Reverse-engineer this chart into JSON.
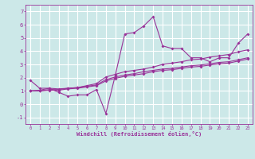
{
  "xlabel": "Windchill (Refroidissement éolien,°C)",
  "background_color": "#cce8e8",
  "grid_color": "#ffffff",
  "line_color": "#993399",
  "x_values": [
    0,
    1,
    2,
    3,
    4,
    5,
    6,
    7,
    8,
    9,
    10,
    11,
    12,
    13,
    14,
    15,
    16,
    17,
    18,
    19,
    20,
    21,
    22,
    23
  ],
  "line1_y": [
    1.8,
    1.2,
    1.2,
    0.9,
    0.6,
    0.7,
    0.7,
    1.1,
    -0.7,
    2.2,
    5.3,
    5.4,
    5.9,
    6.6,
    4.4,
    4.2,
    4.2,
    3.5,
    3.5,
    3.2,
    3.5,
    3.5,
    4.6,
    5.3
  ],
  "line2_y": [
    1.0,
    1.05,
    1.2,
    1.15,
    1.2,
    1.25,
    1.4,
    1.55,
    2.05,
    2.25,
    2.45,
    2.55,
    2.65,
    2.8,
    3.0,
    3.1,
    3.2,
    3.35,
    3.4,
    3.55,
    3.65,
    3.75,
    3.95,
    4.1
  ],
  "line3_y": [
    1.0,
    1.0,
    1.1,
    1.1,
    1.2,
    1.25,
    1.35,
    1.45,
    1.85,
    2.05,
    2.2,
    2.3,
    2.45,
    2.55,
    2.65,
    2.7,
    2.8,
    2.9,
    2.95,
    3.05,
    3.15,
    3.2,
    3.35,
    3.5
  ],
  "line4_y": [
    1.0,
    1.0,
    1.05,
    1.05,
    1.15,
    1.2,
    1.3,
    1.4,
    1.75,
    1.95,
    2.1,
    2.2,
    2.3,
    2.45,
    2.55,
    2.6,
    2.7,
    2.8,
    2.85,
    2.95,
    3.05,
    3.1,
    3.25,
    3.4
  ],
  "ylim": [
    -1.5,
    7.5
  ],
  "xlim": [
    -0.5,
    23.5
  ],
  "yticks": [
    -1,
    0,
    1,
    2,
    3,
    4,
    5,
    6,
    7
  ],
  "xticks": [
    0,
    1,
    2,
    3,
    4,
    5,
    6,
    7,
    8,
    9,
    10,
    11,
    12,
    13,
    14,
    15,
    16,
    17,
    18,
    19,
    20,
    21,
    22,
    23
  ]
}
